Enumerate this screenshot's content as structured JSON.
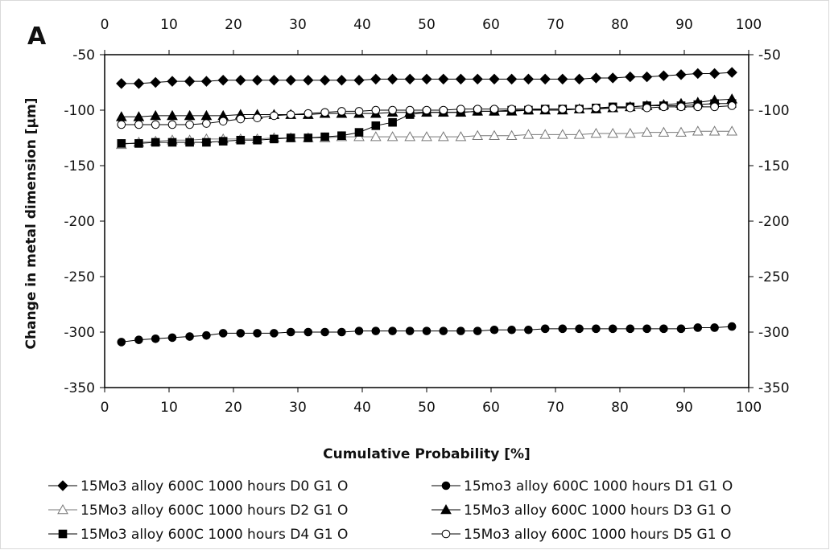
{
  "panel_label": "A",
  "chart_data": {
    "type": "line",
    "title": "",
    "xlabel": "Cumulative Probability [%]",
    "ylabel": "Change in metal dimension [µm]",
    "xlim": [
      0,
      100
    ],
    "ylim": [
      -350,
      -50
    ],
    "xticks": [
      0,
      10,
      20,
      30,
      40,
      50,
      60,
      70,
      80,
      90,
      100
    ],
    "yticks": [
      -50,
      -100,
      -150,
      -200,
      -250,
      -300,
      -350
    ],
    "grid": false,
    "legend_position": "bottom",
    "series": [
      {
        "name": "15Mo3 alloy 600C 1000 hours D0 G1 O",
        "marker": "filled-diamond",
        "x": [
          2.6,
          5.3,
          7.9,
          10.5,
          13.2,
          15.8,
          18.4,
          21.1,
          23.7,
          26.3,
          28.9,
          31.6,
          34.2,
          36.8,
          39.5,
          42.1,
          44.7,
          47.4,
          50.0,
          52.6,
          55.3,
          57.9,
          60.5,
          63.2,
          65.8,
          68.4,
          71.1,
          73.7,
          76.3,
          78.9,
          81.6,
          84.2,
          86.8,
          89.5,
          92.1,
          94.7,
          97.4
        ],
        "y": [
          -76,
          -76,
          -75,
          -74,
          -74,
          -74,
          -73,
          -73,
          -73,
          -73,
          -73,
          -73,
          -73,
          -73,
          -73,
          -72,
          -72,
          -72,
          -72,
          -72,
          -72,
          -72,
          -72,
          -72,
          -72,
          -72,
          -72,
          -72,
          -71,
          -71,
          -70,
          -70,
          -69,
          -68,
          -67,
          -67,
          -66
        ]
      },
      {
        "name": "15mo3 alloy 600C 1000 hours D1 G1 O",
        "marker": "filled-circle",
        "x": [
          2.6,
          5.3,
          7.9,
          10.5,
          13.2,
          15.8,
          18.4,
          21.1,
          23.7,
          26.3,
          28.9,
          31.6,
          34.2,
          36.8,
          39.5,
          42.1,
          44.7,
          47.4,
          50.0,
          52.6,
          55.3,
          57.9,
          60.5,
          63.2,
          65.8,
          68.4,
          71.1,
          73.7,
          76.3,
          78.9,
          81.6,
          84.2,
          86.8,
          89.5,
          92.1,
          94.7,
          97.4
        ],
        "y": [
          -309,
          -307,
          -306,
          -305,
          -304,
          -303,
          -301,
          -301,
          -301,
          -301,
          -300,
          -300,
          -300,
          -300,
          -299,
          -299,
          -299,
          -299,
          -299,
          -299,
          -299,
          -299,
          -298,
          -298,
          -298,
          -297,
          -297,
          -297,
          -297,
          -297,
          -297,
          -297,
          -297,
          -297,
          -296,
          -296,
          -295
        ]
      },
      {
        "name": "15Mo3 alloy 600C 1000 hours D2 G1 O",
        "marker": "open-triangle",
        "x": [
          2.6,
          5.3,
          7.9,
          10.5,
          13.2,
          15.8,
          18.4,
          21.1,
          23.7,
          26.3,
          28.9,
          31.6,
          34.2,
          36.8,
          39.5,
          42.1,
          44.7,
          47.4,
          50.0,
          52.6,
          55.3,
          57.9,
          60.5,
          63.2,
          65.8,
          68.4,
          71.1,
          73.7,
          76.3,
          78.9,
          81.6,
          84.2,
          86.8,
          89.5,
          92.1,
          94.7,
          97.4
        ],
        "y": [
          -131,
          -129,
          -128,
          -127,
          -127,
          -126,
          -126,
          -126,
          -126,
          -125,
          -125,
          -125,
          -125,
          -124,
          -124,
          -124,
          -124,
          -124,
          -124,
          -124,
          -124,
          -123,
          -123,
          -123,
          -122,
          -122,
          -122,
          -122,
          -121,
          -121,
          -121,
          -120,
          -120,
          -120,
          -119,
          -119,
          -119
        ]
      },
      {
        "name": "15Mo3 alloy 600C 1000 hours D3 G1 O",
        "marker": "filled-triangle",
        "x": [
          2.6,
          5.3,
          7.9,
          10.5,
          13.2,
          15.8,
          18.4,
          21.1,
          23.7,
          26.3,
          28.9,
          31.6,
          34.2,
          36.8,
          39.5,
          42.1,
          44.7,
          47.4,
          50.0,
          52.6,
          55.3,
          57.9,
          60.5,
          63.2,
          65.8,
          68.4,
          71.1,
          73.7,
          76.3,
          78.9,
          81.6,
          84.2,
          86.8,
          89.5,
          92.1,
          94.7,
          97.4
        ],
        "y": [
          -106,
          -106,
          -105,
          -105,
          -105,
          -105,
          -105,
          -104,
          -104,
          -104,
          -104,
          -104,
          -103,
          -103,
          -103,
          -103,
          -102,
          -102,
          -102,
          -102,
          -102,
          -101,
          -101,
          -101,
          -100,
          -100,
          -100,
          -99,
          -99,
          -98,
          -97,
          -96,
          -95,
          -94,
          -93,
          -91,
          -90
        ]
      },
      {
        "name": "15Mo3 alloy 600C 1000 hours D4 G1 O",
        "marker": "filled-square",
        "x": [
          2.6,
          5.3,
          7.9,
          10.5,
          13.2,
          15.8,
          18.4,
          21.1,
          23.7,
          26.3,
          28.9,
          31.6,
          34.2,
          36.8,
          39.5,
          42.1,
          44.7,
          47.4,
          50.0,
          52.6,
          55.3,
          57.9,
          60.5,
          63.2,
          65.8,
          68.4,
          71.1,
          73.7,
          76.3,
          78.9,
          81.6,
          84.2,
          86.8,
          89.5,
          92.1,
          94.7,
          97.4
        ],
        "y": [
          -130,
          -130,
          -129,
          -129,
          -129,
          -129,
          -128,
          -127,
          -127,
          -126,
          -125,
          -125,
          -124,
          -123,
          -120,
          -114,
          -111,
          -104,
          -102,
          -102,
          -102,
          -101,
          -101,
          -100,
          -100,
          -99,
          -99,
          -99,
          -98,
          -97,
          -97,
          -96,
          -96,
          -96,
          -95,
          -94,
          -94
        ]
      },
      {
        "name": "15Mo3 alloy 600C 1000 hours D5 G1 O",
        "marker": "open-circle",
        "x": [
          2.6,
          5.3,
          7.9,
          10.5,
          13.2,
          15.8,
          18.4,
          21.1,
          23.7,
          26.3,
          28.9,
          31.6,
          34.2,
          36.8,
          39.5,
          42.1,
          44.7,
          47.4,
          50.0,
          52.6,
          55.3,
          57.9,
          60.5,
          63.2,
          65.8,
          68.4,
          71.1,
          73.7,
          76.3,
          78.9,
          81.6,
          84.2,
          86.8,
          89.5,
          92.1,
          94.7,
          97.4
        ],
        "y": [
          -113,
          -113,
          -113,
          -113,
          -113,
          -112,
          -110,
          -108,
          -107,
          -105,
          -104,
          -103,
          -102,
          -101,
          -101,
          -100,
          -100,
          -100,
          -100,
          -100,
          -99,
          -99,
          -99,
          -99,
          -99,
          -99,
          -99,
          -99,
          -98,
          -98,
          -98,
          -98,
          -97,
          -97,
          -97,
          -97,
          -96
        ]
      }
    ]
  }
}
